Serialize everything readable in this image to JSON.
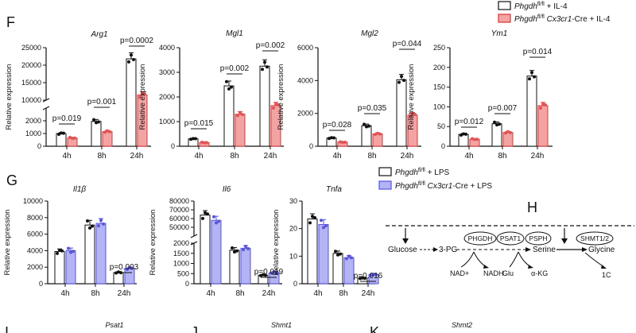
{
  "panel_labels": {
    "F": "F",
    "G": "G",
    "H": "H",
    "I": "I",
    "J": "J",
    "K": "K"
  },
  "legend_f": {
    "entries": [
      {
        "gene": "Phgdh",
        "sup": "fl/fl",
        "rest": " + IL-4",
        "color": "#ffffff"
      },
      {
        "gene": "Phgdh",
        "sup": "fl/fl",
        "mid_italic": " Cx3cr1",
        "rest": "-Cre + IL-4",
        "color": "#f4a3a3"
      }
    ]
  },
  "legend_g": {
    "entries": [
      {
        "gene": "Phgdh",
        "sup": "fl/fl",
        "rest": " + LPS",
        "color": "#ffffff"
      },
      {
        "gene": "Phgdh",
        "sup": "fl/fl",
        "mid_italic": " Cx3cr1",
        "rest": "-Cre + LPS",
        "color": "#b3b3f5"
      }
    ]
  },
  "colors": {
    "control": "#ffffff",
    "il4_cko": "#f4a3a3",
    "il4_dot": "#e05555",
    "lps_cko": "#b3b3f5",
    "lps_dot": "#5a55d8",
    "axis": "#111111"
  },
  "chart_data": [
    {
      "type": "bar",
      "title": "Arg1",
      "ylabel": "Relative expression",
      "categories": [
        "4h",
        "8h",
        "24h"
      ],
      "axis_break": {
        "lower": [
          0,
          3000
        ],
        "upper": [
          10000,
          25000
        ]
      },
      "yticks_lower": [
        "0",
        "1000",
        "2000"
      ],
      "yticks_upper": [
        "10000",
        "15000",
        "20000",
        "25000"
      ],
      "series": [
        {
          "name": "Phgdh fl/fl + IL-4",
          "values": [
            1000,
            1950,
            21800
          ]
        },
        {
          "name": "Phgdh fl/fl Cx3cr1-Cre + IL-4",
          "values": [
            650,
            1150,
            11500
          ]
        }
      ],
      "annotations": [
        "p=0.019",
        "p=0.001",
        "p=0.0002"
      ]
    },
    {
      "type": "bar",
      "title": "Mgl1",
      "ylabel": "Relative expression",
      "categories": [
        "4h",
        "8h",
        "24h"
      ],
      "ylim": [
        0,
        4000
      ],
      "yticks": [
        "0",
        "1000",
        "2000",
        "3000",
        "4000"
      ],
      "series": [
        {
          "name": "Phgdh fl/fl + IL-4",
          "values": [
            300,
            2450,
            3250
          ]
        },
        {
          "name": "Phgdh fl/fl Cx3cr1-Cre + IL-4",
          "values": [
            150,
            1300,
            1650
          ]
        }
      ],
      "annotations": [
        "p=0.015",
        "p=0.002",
        "p=0.002"
      ]
    },
    {
      "type": "bar",
      "title": "Mgl2",
      "ylabel": "Relative expression",
      "categories": [
        "4h",
        "8h",
        "24h"
      ],
      "ylim": [
        0,
        6000
      ],
      "yticks": [
        "0",
        "2000",
        "4000",
        "6000"
      ],
      "series": [
        {
          "name": "Phgdh fl/fl + IL-4",
          "values": [
            500,
            1250,
            4050
          ]
        },
        {
          "name": "Phgdh fl/fl Cx3cr1-Cre + IL-4",
          "values": [
            250,
            750,
            1900
          ]
        }
      ],
      "annotations": [
        "p=0.028",
        "p=0.035",
        "p=0.044"
      ]
    },
    {
      "type": "bar",
      "title": "Ym1",
      "ylabel": "Relative expression",
      "categories": [
        "4h",
        "8h",
        "24h"
      ],
      "ylim": [
        0,
        250
      ],
      "yticks": [
        "0",
        "50",
        "100",
        "150",
        "200",
        "250"
      ],
      "series": [
        {
          "name": "Phgdh fl/fl + IL-4",
          "values": [
            30,
            57,
            178
          ]
        },
        {
          "name": "Phgdh fl/fl Cx3cr1-Cre + IL-4",
          "values": [
            18,
            35,
            103
          ]
        }
      ],
      "annotations": [
        "p=0.012",
        "p=0.007",
        "p=0.014"
      ]
    },
    {
      "type": "bar",
      "title": "Il1β",
      "ylabel": "Relative expression",
      "categories": [
        "4h",
        "8h",
        "24h"
      ],
      "ylim": [
        0,
        10000
      ],
      "yticks": [
        "0",
        "2000",
        "4000",
        "6000",
        "8000",
        "10000"
      ],
      "series": [
        {
          "name": "Phgdh fl/fl + LPS",
          "values": [
            3900,
            7100,
            1350
          ]
        },
        {
          "name": "Phgdh fl/fl Cx3cr1-Cre + LPS",
          "values": [
            4000,
            7300,
            1850
          ]
        }
      ],
      "annotations": [
        "p=0.003"
      ]
    },
    {
      "type": "bar",
      "title": "Il6",
      "ylabel": "Relative expression",
      "categories": [
        "4h",
        "8h",
        "24h"
      ],
      "axis_break": {
        "lower": [
          0,
          2000
        ],
        "upper": [
          40000,
          80000
        ]
      },
      "yticks_lower": [
        "0",
        "500",
        "1000",
        "1500",
        "2000"
      ],
      "yticks_upper": [
        "50000",
        "60000",
        "70000",
        "80000"
      ],
      "series": [
        {
          "name": "Phgdh fl/fl + LPS",
          "values": [
            64000,
            1650,
            420
          ]
        },
        {
          "name": "Phgdh fl/fl Cx3cr1-Cre + LPS",
          "values": [
            58000,
            1750,
            560
          ]
        }
      ],
      "annotations": [
        "p=0.019"
      ]
    },
    {
      "type": "bar",
      "title": "Tnfa",
      "ylabel": "Relative expression",
      "categories": [
        "4h",
        "8h",
        "24h"
      ],
      "ylim": [
        0,
        30
      ],
      "yticks": [
        "0",
        "10",
        "20",
        "30"
      ],
      "series": [
        {
          "name": "Phgdh fl/fl + LPS",
          "values": [
            23.5,
            11,
            2
          ]
        },
        {
          "name": "Phgdh fl/fl Cx3cr1-Cre + LPS",
          "values": [
            21.5,
            9.5,
            3.3
          ]
        }
      ],
      "annotations": [
        "p=0.016"
      ]
    }
  ],
  "pathway": {
    "glucose": "Glucose",
    "three_pg": "3-PG",
    "serine": "Serine",
    "glycine": "Glycine",
    "enzymes": [
      "PHGDH",
      "PSAT1",
      "PSPH",
      "SHMT1/2"
    ],
    "nad": "NAD+",
    "nadh": "NADH",
    "glu": "Glu",
    "akg": "α-KG",
    "one_c": "1C"
  },
  "bottom_titles": [
    "Psat1",
    "Shmt1",
    "Shmt2"
  ]
}
